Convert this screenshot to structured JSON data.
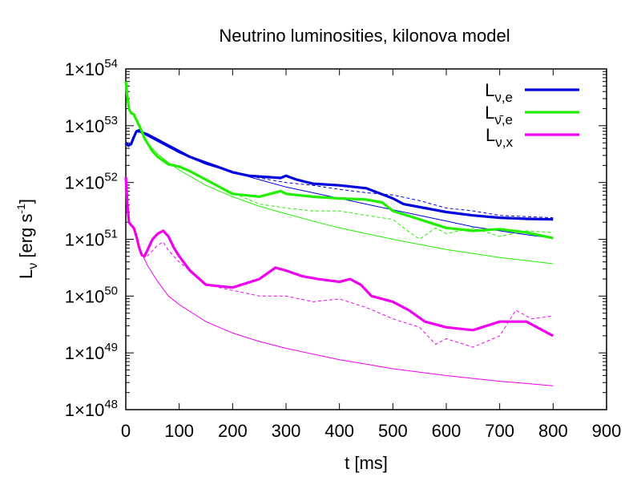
{
  "chart_data": {
    "type": "line",
    "title": "Neutrino luminosities, kilonova model",
    "xlabel": "t [ms]",
    "ylabel": "Lν [erg s-1]",
    "ylabel_parts": {
      "main": "L",
      "sub": "ν",
      "rest": " [erg s",
      "sup": "-1",
      "close": "]"
    },
    "xlim": [
      0,
      900
    ],
    "ylim_log10": [
      48,
      54
    ],
    "yscale": "log",
    "x_ticks": [
      0,
      100,
      200,
      300,
      400,
      500,
      600,
      700,
      800,
      900
    ],
    "y_ticks": [
      {
        "base": "1×10",
        "exp": "48",
        "log10": 48
      },
      {
        "base": "1×10",
        "exp": "49",
        "log10": 49
      },
      {
        "base": "1×10",
        "exp": "50",
        "log10": 50
      },
      {
        "base": "1×10",
        "exp": "51",
        "log10": 51
      },
      {
        "base": "1×10",
        "exp": "52",
        "log10": 52
      },
      {
        "base": "1×10",
        "exp": "53",
        "log10": 53
      },
      {
        "base": "1×10",
        "exp": "54",
        "log10": 54
      }
    ],
    "legend_position": "top-right",
    "legend": [
      {
        "main": "L",
        "sub": "ν,e",
        "color": "#0000dd"
      },
      {
        "main": "L",
        "sub": "ν̄,e",
        "color": "#22ee00"
      },
      {
        "main": "L",
        "sub": "ν,x",
        "color": "#ee00ee"
      }
    ],
    "series": [
      {
        "name": "L_nu_e",
        "style": "thick",
        "color": "#0000dd",
        "x": [
          0,
          5,
          10,
          15,
          20,
          25,
          30,
          40,
          50,
          60,
          80,
          100,
          120,
          150,
          180,
          200,
          230,
          260,
          290,
          300,
          320,
          350,
          400,
          450,
          500,
          520,
          560,
          600,
          650,
          700,
          750,
          800
        ],
        "y_log10": [
          52.7,
          52.65,
          52.68,
          52.8,
          52.9,
          52.92,
          52.88,
          52.85,
          52.8,
          52.75,
          52.65,
          52.55,
          52.45,
          52.35,
          52.25,
          52.18,
          52.12,
          52.1,
          52.08,
          52.12,
          52.05,
          51.98,
          51.95,
          51.9,
          51.72,
          51.62,
          51.55,
          51.48,
          51.42,
          51.38,
          51.36,
          51.35
        ]
      },
      {
        "name": "L_nu_e_dashed",
        "style": "dashed",
        "color": "#0000dd",
        "x": [
          20,
          40,
          60,
          100,
          150,
          200,
          250,
          300,
          350,
          400,
          450,
          500,
          550,
          600,
          650,
          700,
          750,
          800
        ],
        "y_log10": [
          52.9,
          52.82,
          52.75,
          52.55,
          52.35,
          52.2,
          52.08,
          52.0,
          51.95,
          51.88,
          51.82,
          51.78,
          51.68,
          51.55,
          51.5,
          51.42,
          51.4,
          51.38
        ]
      },
      {
        "name": "L_nu_e_thin",
        "style": "thin",
        "color": "#0000dd",
        "x": [
          20,
          40,
          60,
          100,
          150,
          200,
          250,
          300,
          350,
          400,
          450,
          500,
          550,
          600,
          650,
          700,
          750,
          800
        ],
        "y_log10": [
          52.92,
          52.82,
          52.72,
          52.52,
          52.32,
          52.18,
          52.05,
          51.92,
          51.82,
          51.72,
          51.62,
          51.52,
          51.42,
          51.32,
          51.22,
          51.15,
          51.08,
          51.02
        ]
      },
      {
        "name": "L_anti_nu_e",
        "style": "thick",
        "color": "#22ee00",
        "x": [
          0,
          3,
          6,
          10,
          15,
          20,
          25,
          30,
          35,
          40,
          50,
          60,
          80,
          100,
          120,
          150,
          180,
          200,
          250,
          290,
          300,
          350,
          400,
          450,
          480,
          500,
          550,
          600,
          650,
          700,
          750,
          800
        ],
        "y_log10": [
          53.78,
          53.5,
          53.3,
          53.22,
          53.2,
          53.1,
          53.0,
          52.9,
          52.78,
          52.7,
          52.55,
          52.45,
          52.32,
          52.28,
          52.2,
          52.05,
          51.9,
          51.8,
          51.75,
          51.85,
          51.8,
          51.75,
          51.72,
          51.7,
          51.65,
          51.5,
          51.35,
          51.2,
          51.15,
          51.18,
          51.12,
          51.02
        ]
      },
      {
        "name": "L_anti_nu_e_dashed",
        "style": "dashed",
        "color": "#22ee00",
        "x": [
          100,
          150,
          200,
          250,
          300,
          350,
          400,
          450,
          500,
          520,
          550,
          580,
          600,
          650,
          700,
          750,
          800
        ],
        "y_log10": [
          52.3,
          52.05,
          51.82,
          51.62,
          51.55,
          51.5,
          51.5,
          51.42,
          51.35,
          51.2,
          51.0,
          51.2,
          51.1,
          51.2,
          51.05,
          51.15,
          51.12
        ]
      },
      {
        "name": "L_anti_nu_e_thin",
        "style": "thin",
        "color": "#22ee00",
        "x": [
          30,
          40,
          50,
          60,
          80,
          100,
          150,
          200,
          250,
          300,
          350,
          400,
          450,
          500,
          600,
          700,
          800
        ],
        "y_log10": [
          52.85,
          52.7,
          52.6,
          52.5,
          52.35,
          52.22,
          51.95,
          51.75,
          51.58,
          51.45,
          51.32,
          51.2,
          51.1,
          51.0,
          50.82,
          50.68,
          50.57
        ]
      },
      {
        "name": "L_nu_x",
        "style": "thick",
        "color": "#ee00ee",
        "x": [
          0,
          3,
          6,
          10,
          15,
          20,
          25,
          30,
          35,
          40,
          50,
          60,
          70,
          80,
          90,
          100,
          120,
          150,
          200,
          250,
          280,
          300,
          330,
          360,
          400,
          420,
          440,
          460,
          500,
          530,
          560,
          600,
          650,
          700,
          750,
          800
        ],
        "y_log10": [
          52.1,
          51.6,
          51.3,
          51.25,
          51.2,
          51.05,
          50.85,
          50.72,
          50.7,
          50.8,
          51.0,
          51.1,
          51.15,
          51.05,
          50.85,
          50.7,
          50.45,
          50.2,
          50.15,
          50.3,
          50.5,
          50.45,
          50.35,
          50.3,
          50.25,
          50.3,
          50.2,
          50.0,
          49.9,
          49.75,
          49.55,
          49.45,
          49.4,
          49.55,
          49.55,
          49.3
        ]
      },
      {
        "name": "L_nu_x_dashed",
        "style": "dashed",
        "color": "#ee00ee",
        "x": [
          40,
          50,
          60,
          70,
          80,
          90,
          100,
          120,
          150,
          200,
          250,
          300,
          350,
          400,
          450,
          500,
          550,
          580,
          600,
          650,
          700,
          730,
          760,
          800
        ],
        "y_log10": [
          50.7,
          50.8,
          50.9,
          50.95,
          50.8,
          50.7,
          50.6,
          50.45,
          50.2,
          50.1,
          50.0,
          50.0,
          49.9,
          49.95,
          49.8,
          49.6,
          49.45,
          49.15,
          49.25,
          49.1,
          49.3,
          49.75,
          49.6,
          49.65
        ]
      },
      {
        "name": "L_nu_x_thin",
        "style": "thin",
        "color": "#ee00ee",
        "x": [
          30,
          40,
          50,
          60,
          80,
          100,
          150,
          200,
          250,
          300,
          350,
          400,
          450,
          500,
          600,
          700,
          800
        ],
        "y_log10": [
          50.75,
          50.55,
          50.4,
          50.25,
          50.0,
          49.85,
          49.55,
          49.35,
          49.2,
          49.08,
          48.98,
          48.88,
          48.8,
          48.72,
          48.6,
          48.5,
          48.42
        ]
      }
    ]
  }
}
